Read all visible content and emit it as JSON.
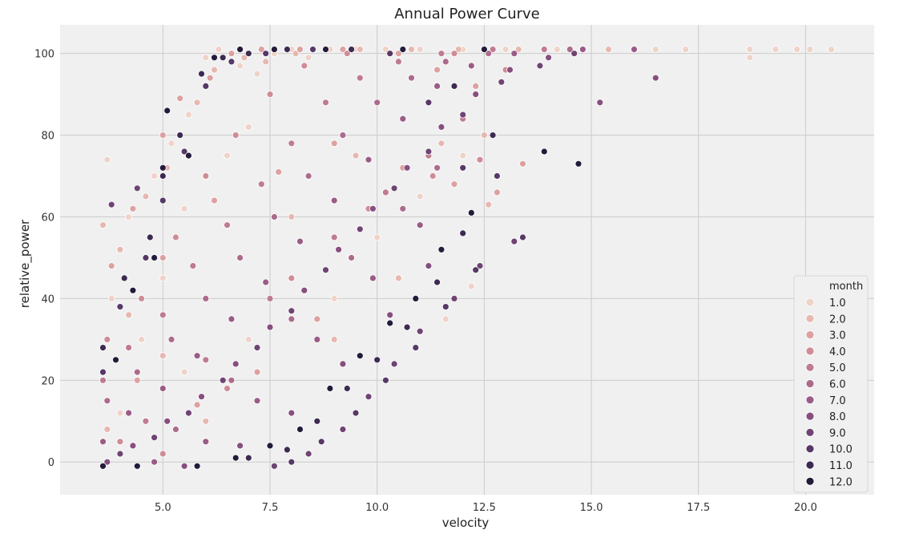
{
  "chart_data": {
    "type": "scatter",
    "title": "Annual Power Curve",
    "xlabel": "velocity",
    "ylabel": "relative_power",
    "xlim": [
      2.6,
      21.6
    ],
    "ylim": [
      -8,
      107
    ],
    "xticks": [
      "5.0",
      "7.5",
      "10.0",
      "12.5",
      "15.0",
      "17.5",
      "20.0"
    ],
    "yticks": [
      "0",
      "20",
      "40",
      "60",
      "80",
      "100"
    ],
    "grid": true,
    "legend": {
      "title": "month",
      "placement": "lower-right",
      "entries": [
        "1.0",
        "2.0",
        "3.0",
        "4.0",
        "5.0",
        "6.0",
        "7.0",
        "8.0",
        "9.0",
        "10.0",
        "11.0",
        "12.0"
      ]
    },
    "hue_colors": [
      "#efd2c8",
      "#e6b8b0",
      "#dca1a0",
      "#cf8c97",
      "#bf7b91",
      "#ad6b8c",
      "#9a5c86",
      "#864f7e",
      "#6f4474",
      "#573866",
      "#3d2a52",
      "#241a3a"
    ],
    "series": [
      {
        "name": "1.0",
        "color": "#efd2c8",
        "points": [
          [
            3.7,
            74
          ],
          [
            4.2,
            60
          ],
          [
            4.8,
            70
          ],
          [
            5.2,
            78
          ],
          [
            5.6,
            85
          ],
          [
            6.0,
            99
          ],
          [
            6.3,
            101
          ],
          [
            6.8,
            97
          ],
          [
            7.2,
            95
          ],
          [
            7.6,
            100
          ],
          [
            8.0,
            101
          ],
          [
            8.4,
            99
          ],
          [
            8.9,
            101
          ],
          [
            9.5,
            101
          ],
          [
            10.2,
            101
          ],
          [
            11.0,
            101
          ],
          [
            12.0,
            101
          ],
          [
            13.0,
            101
          ],
          [
            14.2,
            101
          ],
          [
            16.5,
            101
          ],
          [
            17.2,
            101
          ],
          [
            18.7,
            101
          ],
          [
            19.3,
            101
          ],
          [
            19.8,
            101
          ],
          [
            20.1,
            101
          ],
          [
            20.6,
            101
          ],
          [
            18.7,
            99
          ],
          [
            5.5,
            62
          ],
          [
            6.5,
            75
          ],
          [
            7.0,
            82
          ],
          [
            3.8,
            40
          ],
          [
            4.5,
            30
          ],
          [
            5.0,
            45
          ],
          [
            10.0,
            55
          ],
          [
            11.0,
            65
          ],
          [
            12.0,
            75
          ],
          [
            9.0,
            40
          ],
          [
            12.2,
            43
          ],
          [
            11.6,
            35
          ],
          [
            4.0,
            12
          ],
          [
            5.5,
            22
          ],
          [
            7.0,
            30
          ]
        ]
      },
      {
        "name": "2.0",
        "color": "#e6b8b0",
        "points": [
          [
            3.6,
            58
          ],
          [
            4.0,
            52
          ],
          [
            4.6,
            65
          ],
          [
            5.1,
            72
          ],
          [
            5.8,
            88
          ],
          [
            6.2,
            96
          ],
          [
            6.9,
            99
          ],
          [
            7.4,
            98
          ],
          [
            8.1,
            100
          ],
          [
            8.8,
            101
          ],
          [
            9.6,
            101
          ],
          [
            10.8,
            101
          ],
          [
            11.9,
            101
          ],
          [
            13.3,
            101
          ],
          [
            15.4,
            101
          ],
          [
            4.2,
            36
          ],
          [
            5.0,
            26
          ],
          [
            6.0,
            40
          ],
          [
            8.0,
            60
          ],
          [
            9.5,
            75
          ],
          [
            11.5,
            78
          ],
          [
            12.5,
            80
          ],
          [
            12.6,
            63
          ],
          [
            10.5,
            45
          ],
          [
            9.0,
            30
          ],
          [
            3.7,
            8
          ],
          [
            6.0,
            10
          ]
        ]
      },
      {
        "name": "3.0",
        "color": "#dca1a0",
        "points": [
          [
            3.8,
            48
          ],
          [
            4.3,
            62
          ],
          [
            5.0,
            80
          ],
          [
            5.4,
            89
          ],
          [
            6.1,
            94
          ],
          [
            6.6,
            100
          ],
          [
            7.3,
            101
          ],
          [
            8.2,
            101
          ],
          [
            9.2,
            101
          ],
          [
            10.5,
            100
          ],
          [
            11.4,
            96
          ],
          [
            12.3,
            92
          ],
          [
            13.4,
            73
          ],
          [
            5.0,
            50
          ],
          [
            6.2,
            64
          ],
          [
            7.7,
            71
          ],
          [
            9.0,
            78
          ],
          [
            10.6,
            72
          ],
          [
            11.8,
            68
          ],
          [
            12.8,
            66
          ],
          [
            4.4,
            20
          ],
          [
            5.8,
            14
          ],
          [
            7.2,
            22
          ],
          [
            8.6,
            35
          ]
        ]
      },
      {
        "name": "4.0",
        "color": "#cf8c97",
        "points": [
          [
            3.7,
            30
          ],
          [
            4.5,
            40
          ],
          [
            5.3,
            55
          ],
          [
            6.0,
            70
          ],
          [
            6.7,
            80
          ],
          [
            7.5,
            90
          ],
          [
            8.3,
            97
          ],
          [
            9.3,
            100
          ],
          [
            10.6,
            101
          ],
          [
            11.8,
            100
          ],
          [
            13.0,
            96
          ],
          [
            4.0,
            5
          ],
          [
            5.0,
            2
          ],
          [
            6.5,
            18
          ],
          [
            8.0,
            45
          ],
          [
            9.8,
            62
          ],
          [
            11.3,
            70
          ],
          [
            12.4,
            74
          ]
        ]
      },
      {
        "name": "5.0",
        "color": "#bf7b91",
        "points": [
          [
            3.6,
            20
          ],
          [
            4.2,
            28
          ],
          [
            5.0,
            36
          ],
          [
            5.7,
            48
          ],
          [
            6.5,
            58
          ],
          [
            7.3,
            68
          ],
          [
            8.0,
            78
          ],
          [
            8.8,
            88
          ],
          [
            9.6,
            94
          ],
          [
            10.5,
            98
          ],
          [
            11.5,
            100
          ],
          [
            12.7,
            101
          ],
          [
            13.9,
            101
          ],
          [
            4.6,
            10
          ],
          [
            6.0,
            25
          ],
          [
            7.5,
            40
          ],
          [
            9.0,
            55
          ],
          [
            10.2,
            66
          ],
          [
            11.2,
            75
          ],
          [
            12.0,
            84
          ]
        ]
      },
      {
        "name": "6.0",
        "color": "#ad6b8c",
        "points": [
          [
            3.7,
            15
          ],
          [
            4.4,
            22
          ],
          [
            5.2,
            30
          ],
          [
            6.0,
            40
          ],
          [
            6.8,
            50
          ],
          [
            7.6,
            60
          ],
          [
            8.4,
            70
          ],
          [
            9.2,
            80
          ],
          [
            10.0,
            88
          ],
          [
            10.8,
            94
          ],
          [
            11.6,
            98
          ],
          [
            12.6,
            100
          ],
          [
            14.5,
            101
          ],
          [
            5.3,
            8
          ],
          [
            6.6,
            20
          ],
          [
            8.0,
            35
          ],
          [
            9.4,
            50
          ],
          [
            10.6,
            62
          ],
          [
            11.4,
            72
          ]
        ]
      },
      {
        "name": "7.0",
        "color": "#9a5c86",
        "points": [
          [
            3.6,
            5
          ],
          [
            4.2,
            12
          ],
          [
            5.0,
            18
          ],
          [
            5.8,
            26
          ],
          [
            6.6,
            35
          ],
          [
            7.4,
            44
          ],
          [
            8.2,
            54
          ],
          [
            9.0,
            64
          ],
          [
            9.8,
            74
          ],
          [
            10.6,
            84
          ],
          [
            11.4,
            92
          ],
          [
            12.2,
            97
          ],
          [
            13.2,
            100
          ],
          [
            14.8,
            101
          ],
          [
            16.0,
            101
          ],
          [
            4.8,
            0
          ],
          [
            6.0,
            5
          ],
          [
            7.2,
            15
          ],
          [
            8.6,
            30
          ],
          [
            9.9,
            45
          ],
          [
            11.0,
            58
          ]
        ]
      },
      {
        "name": "8.0",
        "color": "#864f7e",
        "points": [
          [
            3.7,
            0
          ],
          [
            4.3,
            4
          ],
          [
            5.1,
            10
          ],
          [
            5.9,
            16
          ],
          [
            6.7,
            24
          ],
          [
            7.5,
            33
          ],
          [
            8.3,
            42
          ],
          [
            9.1,
            52
          ],
          [
            9.9,
            62
          ],
          [
            10.7,
            72
          ],
          [
            11.5,
            82
          ],
          [
            12.3,
            90
          ],
          [
            13.1,
            96
          ],
          [
            14.0,
            99
          ],
          [
            15.2,
            88
          ],
          [
            16.5,
            94
          ],
          [
            5.5,
            -1
          ],
          [
            6.8,
            4
          ],
          [
            8.0,
            12
          ],
          [
            9.2,
            24
          ],
          [
            10.3,
            36
          ],
          [
            11.2,
            48
          ]
        ]
      },
      {
        "name": "9.0",
        "color": "#6f4474",
        "points": [
          [
            3.6,
            -1
          ],
          [
            4.0,
            2
          ],
          [
            4.8,
            6
          ],
          [
            5.6,
            12
          ],
          [
            6.4,
            20
          ],
          [
            7.2,
            28
          ],
          [
            8.0,
            37
          ],
          [
            8.8,
            47
          ],
          [
            9.6,
            57
          ],
          [
            10.4,
            67
          ],
          [
            11.2,
            76
          ],
          [
            12.0,
            85
          ],
          [
            12.9,
            93
          ],
          [
            13.8,
            97
          ],
          [
            14.6,
            100
          ],
          [
            3.8,
            63
          ],
          [
            4.4,
            67
          ],
          [
            13.2,
            54
          ],
          [
            12.4,
            48
          ],
          [
            11.8,
            40
          ],
          [
            11.0,
            32
          ],
          [
            10.4,
            24
          ],
          [
            9.8,
            16
          ],
          [
            9.2,
            8
          ],
          [
            8.4,
            2
          ],
          [
            7.6,
            -1
          ]
        ]
      },
      {
        "name": "10.0",
        "color": "#573866",
        "points": [
          [
            3.6,
            22
          ],
          [
            4.0,
            38
          ],
          [
            4.6,
            50
          ],
          [
            5.0,
            64
          ],
          [
            5.5,
            76
          ],
          [
            6.0,
            92
          ],
          [
            6.6,
            98
          ],
          [
            7.4,
            100
          ],
          [
            8.5,
            101
          ],
          [
            10.3,
            100
          ],
          [
            11.2,
            88
          ],
          [
            12.0,
            72
          ],
          [
            12.8,
            70
          ],
          [
            13.4,
            55
          ],
          [
            12.3,
            47
          ],
          [
            11.6,
            38
          ],
          [
            10.9,
            28
          ],
          [
            10.2,
            20
          ],
          [
            9.5,
            12
          ],
          [
            8.7,
            5
          ],
          [
            8.0,
            0
          ]
        ]
      },
      {
        "name": "11.0",
        "color": "#3d2a52",
        "points": [
          [
            3.6,
            28
          ],
          [
            4.1,
            45
          ],
          [
            4.7,
            55
          ],
          [
            5.0,
            70
          ],
          [
            5.4,
            80
          ],
          [
            5.9,
            95
          ],
          [
            6.4,
            99
          ],
          [
            7.0,
            100
          ],
          [
            7.9,
            101
          ],
          [
            9.4,
            101
          ],
          [
            11.8,
            92
          ],
          [
            12.7,
            80
          ],
          [
            12.0,
            56
          ],
          [
            11.4,
            44
          ],
          [
            10.7,
            33
          ],
          [
            10.0,
            25
          ],
          [
            9.3,
            18
          ],
          [
            8.6,
            10
          ],
          [
            7.9,
            3
          ],
          [
            7.0,
            1
          ]
        ]
      },
      {
        "name": "12.0",
        "color": "#241a3a",
        "points": [
          [
            3.6,
            -1
          ],
          [
            3.9,
            25
          ],
          [
            4.3,
            42
          ],
          [
            4.8,
            50
          ],
          [
            5.0,
            72
          ],
          [
            5.1,
            86
          ],
          [
            5.6,
            75
          ],
          [
            6.2,
            99
          ],
          [
            6.8,
            101
          ],
          [
            7.6,
            101
          ],
          [
            8.8,
            101
          ],
          [
            10.6,
            101
          ],
          [
            12.5,
            101
          ],
          [
            14.7,
            73
          ],
          [
            13.9,
            76
          ],
          [
            12.2,
            61
          ],
          [
            11.5,
            52
          ],
          [
            10.9,
            40
          ],
          [
            10.3,
            34
          ],
          [
            9.6,
            26
          ],
          [
            8.9,
            18
          ],
          [
            8.2,
            8
          ],
          [
            7.5,
            4
          ],
          [
            6.7,
            1
          ],
          [
            5.8,
            -1
          ],
          [
            4.4,
            -1
          ]
        ]
      }
    ]
  }
}
